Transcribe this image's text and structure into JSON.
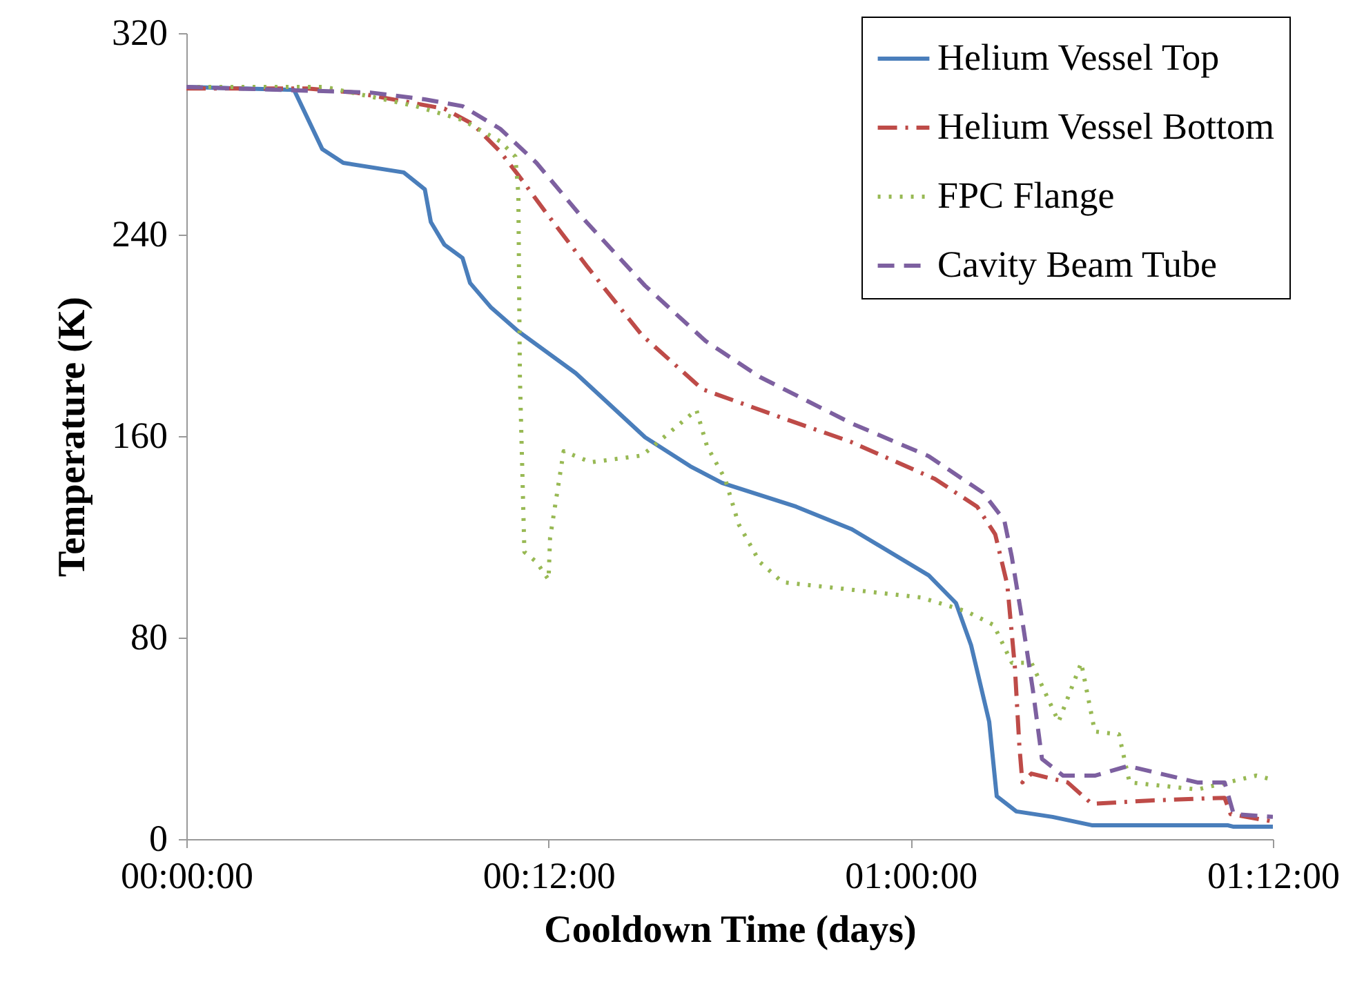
{
  "chart_data": {
    "type": "line",
    "xlabel": "Cooldown Time (days)",
    "ylabel": "Temperature (K)",
    "xlim": [
      "--01-01T00:00",
      "--01-02T12:00"
    ],
    "xticks": [
      {
        "value": "--01-01T00:00",
        "label": "00:00:00"
      },
      {
        "value": "--01-01T12:00",
        "label": "00:12:00"
      },
      {
        "value": "--01-02T00:00",
        "label": "01:00:00"
      },
      {
        "value": "--01-02T12:00",
        "label": "01:12:00"
      }
    ],
    "ylim": [
      0,
      320
    ],
    "yticks": [
      0,
      80,
      160,
      240,
      320
    ],
    "grid": false,
    "legend": "top right",
    "marker": "none",
    "series": [
      {
        "name": "Helium Vessel Top",
        "color": "#4a7ebb",
        "line_style": "solid",
        "x": [
          "--01-01T00:00",
          "--01-01T03:34",
          "--01-01T04:30",
          "--01-01T05:12",
          "--01-01T07:12",
          "--01-01T07:54",
          "--01-01T08:06",
          "--01-01T08:33",
          "--01-01T09:09",
          "--01-01T09:24",
          "--01-01T10:06",
          "--01-01T11:00",
          "--01-01T12:54",
          "--01-01T15:12",
          "--01-01T16:42",
          "--01-01T17:45",
          "--01-01T20:12",
          "--01-01T22:03",
          "--01-02T00:36",
          "--01-02T01:30",
          "--01-02T02:00",
          "--01-02T02:36",
          "--01-02T02:51",
          "--01-02T03:30",
          "--01-02T04:42",
          "--01-02T06:00",
          "--01-02T10:30",
          "--01-02T10:42",
          "--01-02T12:00"
        ],
        "values": [
          298.6,
          297.5,
          274,
          268.5,
          264.7,
          258,
          245,
          236,
          230.7,
          220.8,
          211,
          201.6,
          185,
          159.5,
          148,
          141.4,
          132,
          123,
          104.7,
          93.7,
          77,
          46.6,
          17,
          11,
          8.8,
          5.5,
          5.5,
          4.9,
          4.9
        ]
      },
      {
        "name": "Helium Vessel Bottom",
        "color": "#be4b48",
        "line_style": "dashdot",
        "x": [
          "--01-01T00:00",
          "--01-01T04:00",
          "--01-01T05:36",
          "--01-01T08:33",
          "--01-01T09:30",
          "--01-01T10:24",
          "--01-01T11:00",
          "--01-01T11:54",
          "--01-01T13:18",
          "--01-01T15:06",
          "--01-01T17:06",
          "--01-01T19:48",
          "--01-01T22:00",
          "--01-02T00:48",
          "--01-02T02:12",
          "--01-02T02:48",
          "--01-02T03:12",
          "--01-02T03:27",
          "--01-02T03:36",
          "--01-02T03:42",
          "--01-02T04:00",
          "--01-02T05:12",
          "--01-02T06:00",
          "--01-02T07:54",
          "--01-02T10:24",
          "--01-02T10:36",
          "--01-02T12:00"
        ],
        "values": [
          298,
          298,
          296.4,
          290,
          283.8,
          272.9,
          263.6,
          249,
          227,
          200,
          178.6,
          167,
          157.8,
          143,
          132,
          121,
          101,
          68.5,
          37,
          22.5,
          26,
          22.5,
          14,
          15.3,
          16.4,
          9.9,
          7
        ]
      },
      {
        "name": "FPC Flange",
        "color": "#98b954",
        "line_style": "dotted",
        "x": [
          "--01-01T00:00",
          "--01-01T04:36",
          "--01-01T07:36",
          "--01-01T09:09",
          "--01-01T10:24",
          "--01-01T10:54",
          "--01-01T11:00",
          "--01-01T11:03",
          "--01-01T11:12",
          "--01-01T11:36",
          "--01-01T12:00",
          "--01-01T12:03",
          "--01-01T12:30",
          "--01-01T13:24",
          "--01-01T15:06",
          "--01-01T16:54",
          "--01-01T17:15",
          "--01-01T17:51",
          "--01-01T18:18",
          "--01-01T19:00",
          "--01-01T19:45",
          "--01-01T22:03",
          "--01-02T00:21",
          "--01-02T01:51",
          "--01-02T02:45",
          "--01-02T03:21",
          "--01-02T04:00",
          "--01-02T04:54",
          "--01-02T05:39",
          "--01-02T06:06",
          "--01-02T06:54",
          "--01-02T07:15",
          "--01-02T09:30",
          "--01-02T11:27",
          "--01-02T12:00"
        ],
        "values": [
          298.6,
          298.6,
          291,
          285.5,
          277,
          271,
          256,
          183.6,
          114,
          110,
          103,
          119.5,
          154,
          149.6,
          152.3,
          170.4,
          156,
          143,
          125,
          110,
          102,
          99,
          95.9,
          90.4,
          85,
          70,
          70,
          46.6,
          70,
          42.7,
          41.6,
          22.5,
          19.7,
          25.2,
          23.6
        ]
      },
      {
        "name": "Cavity Beam Tube",
        "color": "#7d60a0",
        "line_style": "dashed",
        "x": [
          "--01-01T00:00",
          "--01-01T06:06",
          "--01-01T07:54",
          "--01-01T09:09",
          "--01-01T10:24",
          "--01-01T11:36",
          "--01-01T13:06",
          "--01-01T15:12",
          "--01-01T17:12",
          "--01-01T19:00",
          "--01-01T22:03",
          "--01-02T00:36",
          "--01-02T02:24",
          "--01-02T03:06",
          "--01-02T03:21",
          "--01-02T03:42",
          "--01-02T04:03",
          "--01-02T04:21",
          "--01-02T05:03",
          "--01-02T06:06",
          "--01-02T07:12",
          "--01-02T09:30",
          "--01-02T10:24",
          "--01-02T10:42",
          "--01-02T12:00"
        ],
        "values": [
          298.6,
          296.4,
          293.7,
          291,
          282,
          268.5,
          247,
          219.7,
          197.8,
          183.5,
          165,
          152,
          137.5,
          126.6,
          112,
          86.6,
          59,
          31.8,
          25.2,
          25.2,
          29,
          22.5,
          22.5,
          9.9,
          8.8
        ]
      }
    ]
  }
}
